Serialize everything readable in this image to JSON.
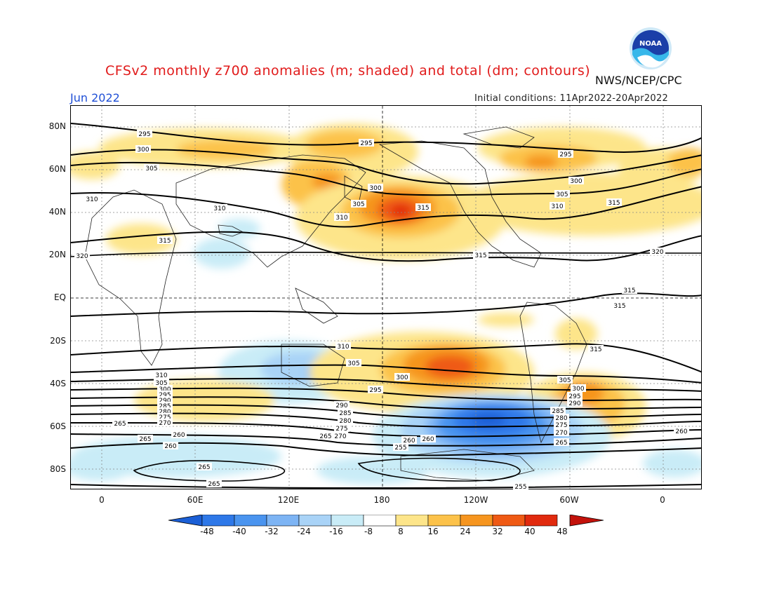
{
  "header": {
    "title": "CFSv2 monthly z700 anomalies (m; shaded) and total (dm; contours)",
    "agency": "NWS/NCEP/CPC",
    "month": "Jun 2022",
    "initial_conditions": "Initial conditions: 11Apr2022-20Apr2022",
    "logo_text": "NOAA"
  },
  "axes": {
    "lat_labels": [
      "80N",
      "60N",
      "40N",
      "20N",
      "EQ",
      "20S",
      "40S",
      "60S",
      "80S"
    ],
    "lon_labels": [
      "0",
      "60E",
      "120E",
      "180",
      "120W",
      "60W",
      "0"
    ]
  },
  "colorbar": {
    "labels": [
      "-48",
      "-40",
      "-32",
      "-24",
      "-16",
      "-8",
      "8",
      "16",
      "24",
      "32",
      "40",
      "48"
    ],
    "colors": [
      "#1b5fd6",
      "#2e78e8",
      "#4a94ef",
      "#7db4f4",
      "#a9d3f7",
      "#c9ecf7",
      "#ffffff",
      "#fde58a",
      "#fcc24a",
      "#f6951f",
      "#ef5a14",
      "#e12a0e",
      "#c3120b"
    ]
  },
  "contour_labels": [
    "295",
    "300",
    "305",
    "310",
    "315",
    "320",
    "295",
    "310",
    "300",
    "305",
    "315",
    "310",
    "315",
    "315",
    "295",
    "300",
    "305",
    "310",
    "315",
    "320",
    "315",
    "315",
    "310",
    "305",
    "300",
    "295",
    "290",
    "285",
    "280",
    "275",
    "270",
    "265",
    "260",
    "255",
    "265",
    "260",
    "265",
    "265",
    "310",
    "305",
    "300",
    "295",
    "290",
    "285",
    "280",
    "275",
    "270",
    "265",
    "260",
    "305",
    "300",
    "295",
    "290",
    "285",
    "280",
    "275",
    "270",
    "265",
    "260",
    "260",
    "255"
  ]
}
